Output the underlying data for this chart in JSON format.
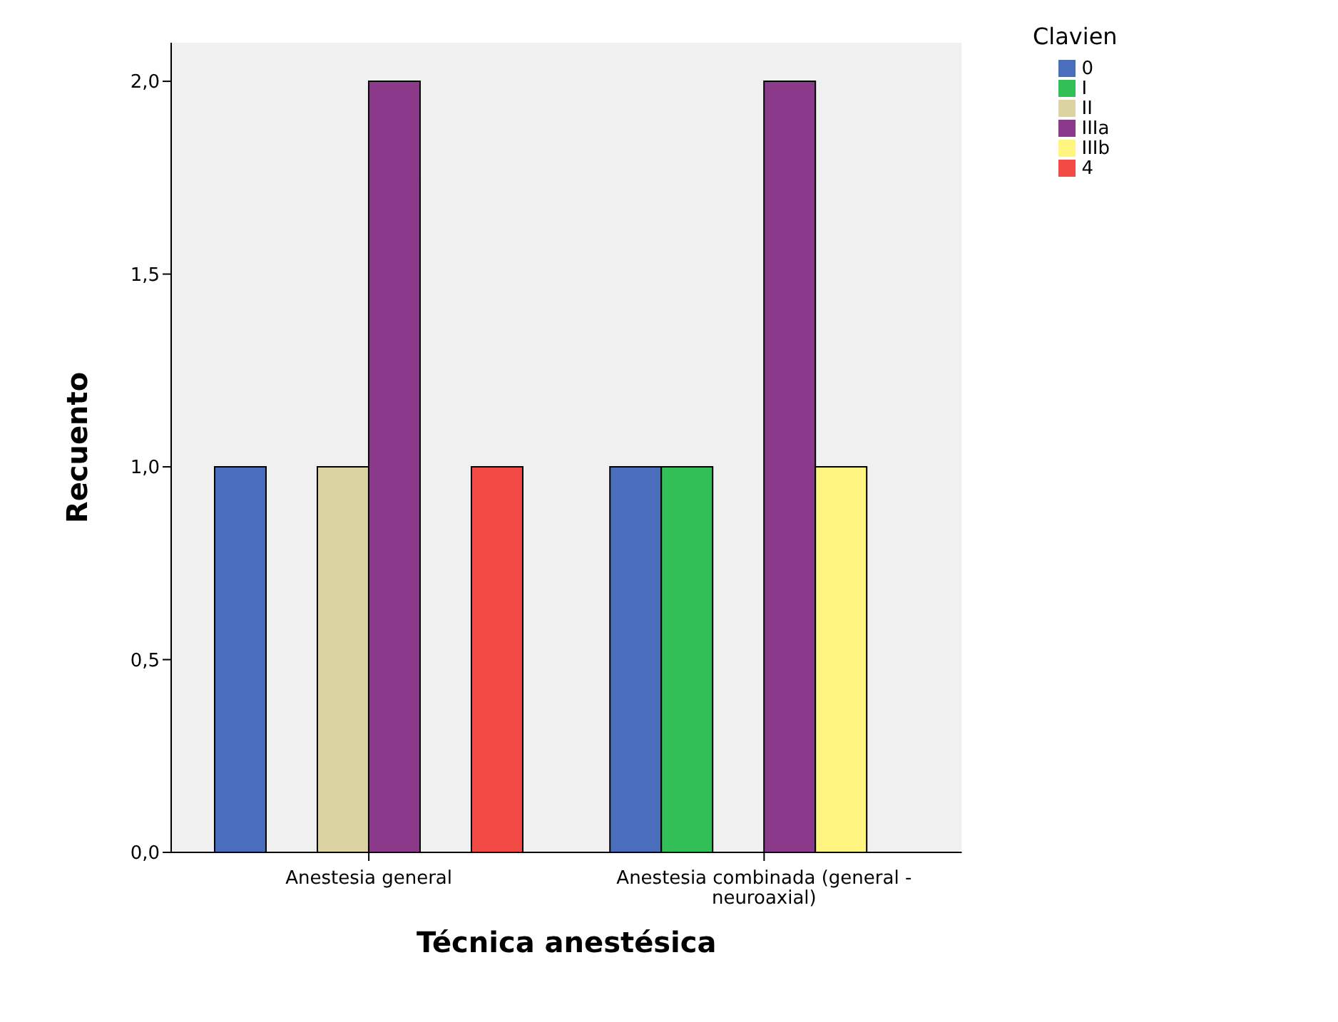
{
  "chart_data": {
    "type": "bar",
    "xlabel": "Técnica anestésica",
    "ylabel": "Recuento",
    "legend_title": "Clavien",
    "legend": "top right",
    "grid": false,
    "categories": [
      "Anestesia general",
      "Anestesia combinada (general - neuroaxial)"
    ],
    "series": [
      {
        "name": "0",
        "color": "#4a6ebb",
        "values": [
          1,
          1
        ]
      },
      {
        "name": "I",
        "color": "#33bf57",
        "values": [
          null,
          1
        ]
      },
      {
        "name": "II",
        "color": "#dcd3a3",
        "values": [
          1,
          null
        ]
      },
      {
        "name": "IIIa",
        "color": "#8b3a8b",
        "values": [
          2,
          2
        ]
      },
      {
        "name": "IIIb",
        "color": "#fff580",
        "values": [
          null,
          1
        ]
      },
      {
        "name": "4",
        "color": "#f24a45",
        "values": [
          1,
          null
        ]
      }
    ],
    "ylim": [
      0,
      2.1
    ],
    "yticks": [
      {
        "value": 0,
        "label": "0,0"
      },
      {
        "value": 0.5,
        "label": "0,5"
      },
      {
        "value": 1,
        "label": "1,0"
      },
      {
        "value": 1.5,
        "label": "1,5"
      },
      {
        "value": 2,
        "label": "2,0"
      }
    ]
  }
}
